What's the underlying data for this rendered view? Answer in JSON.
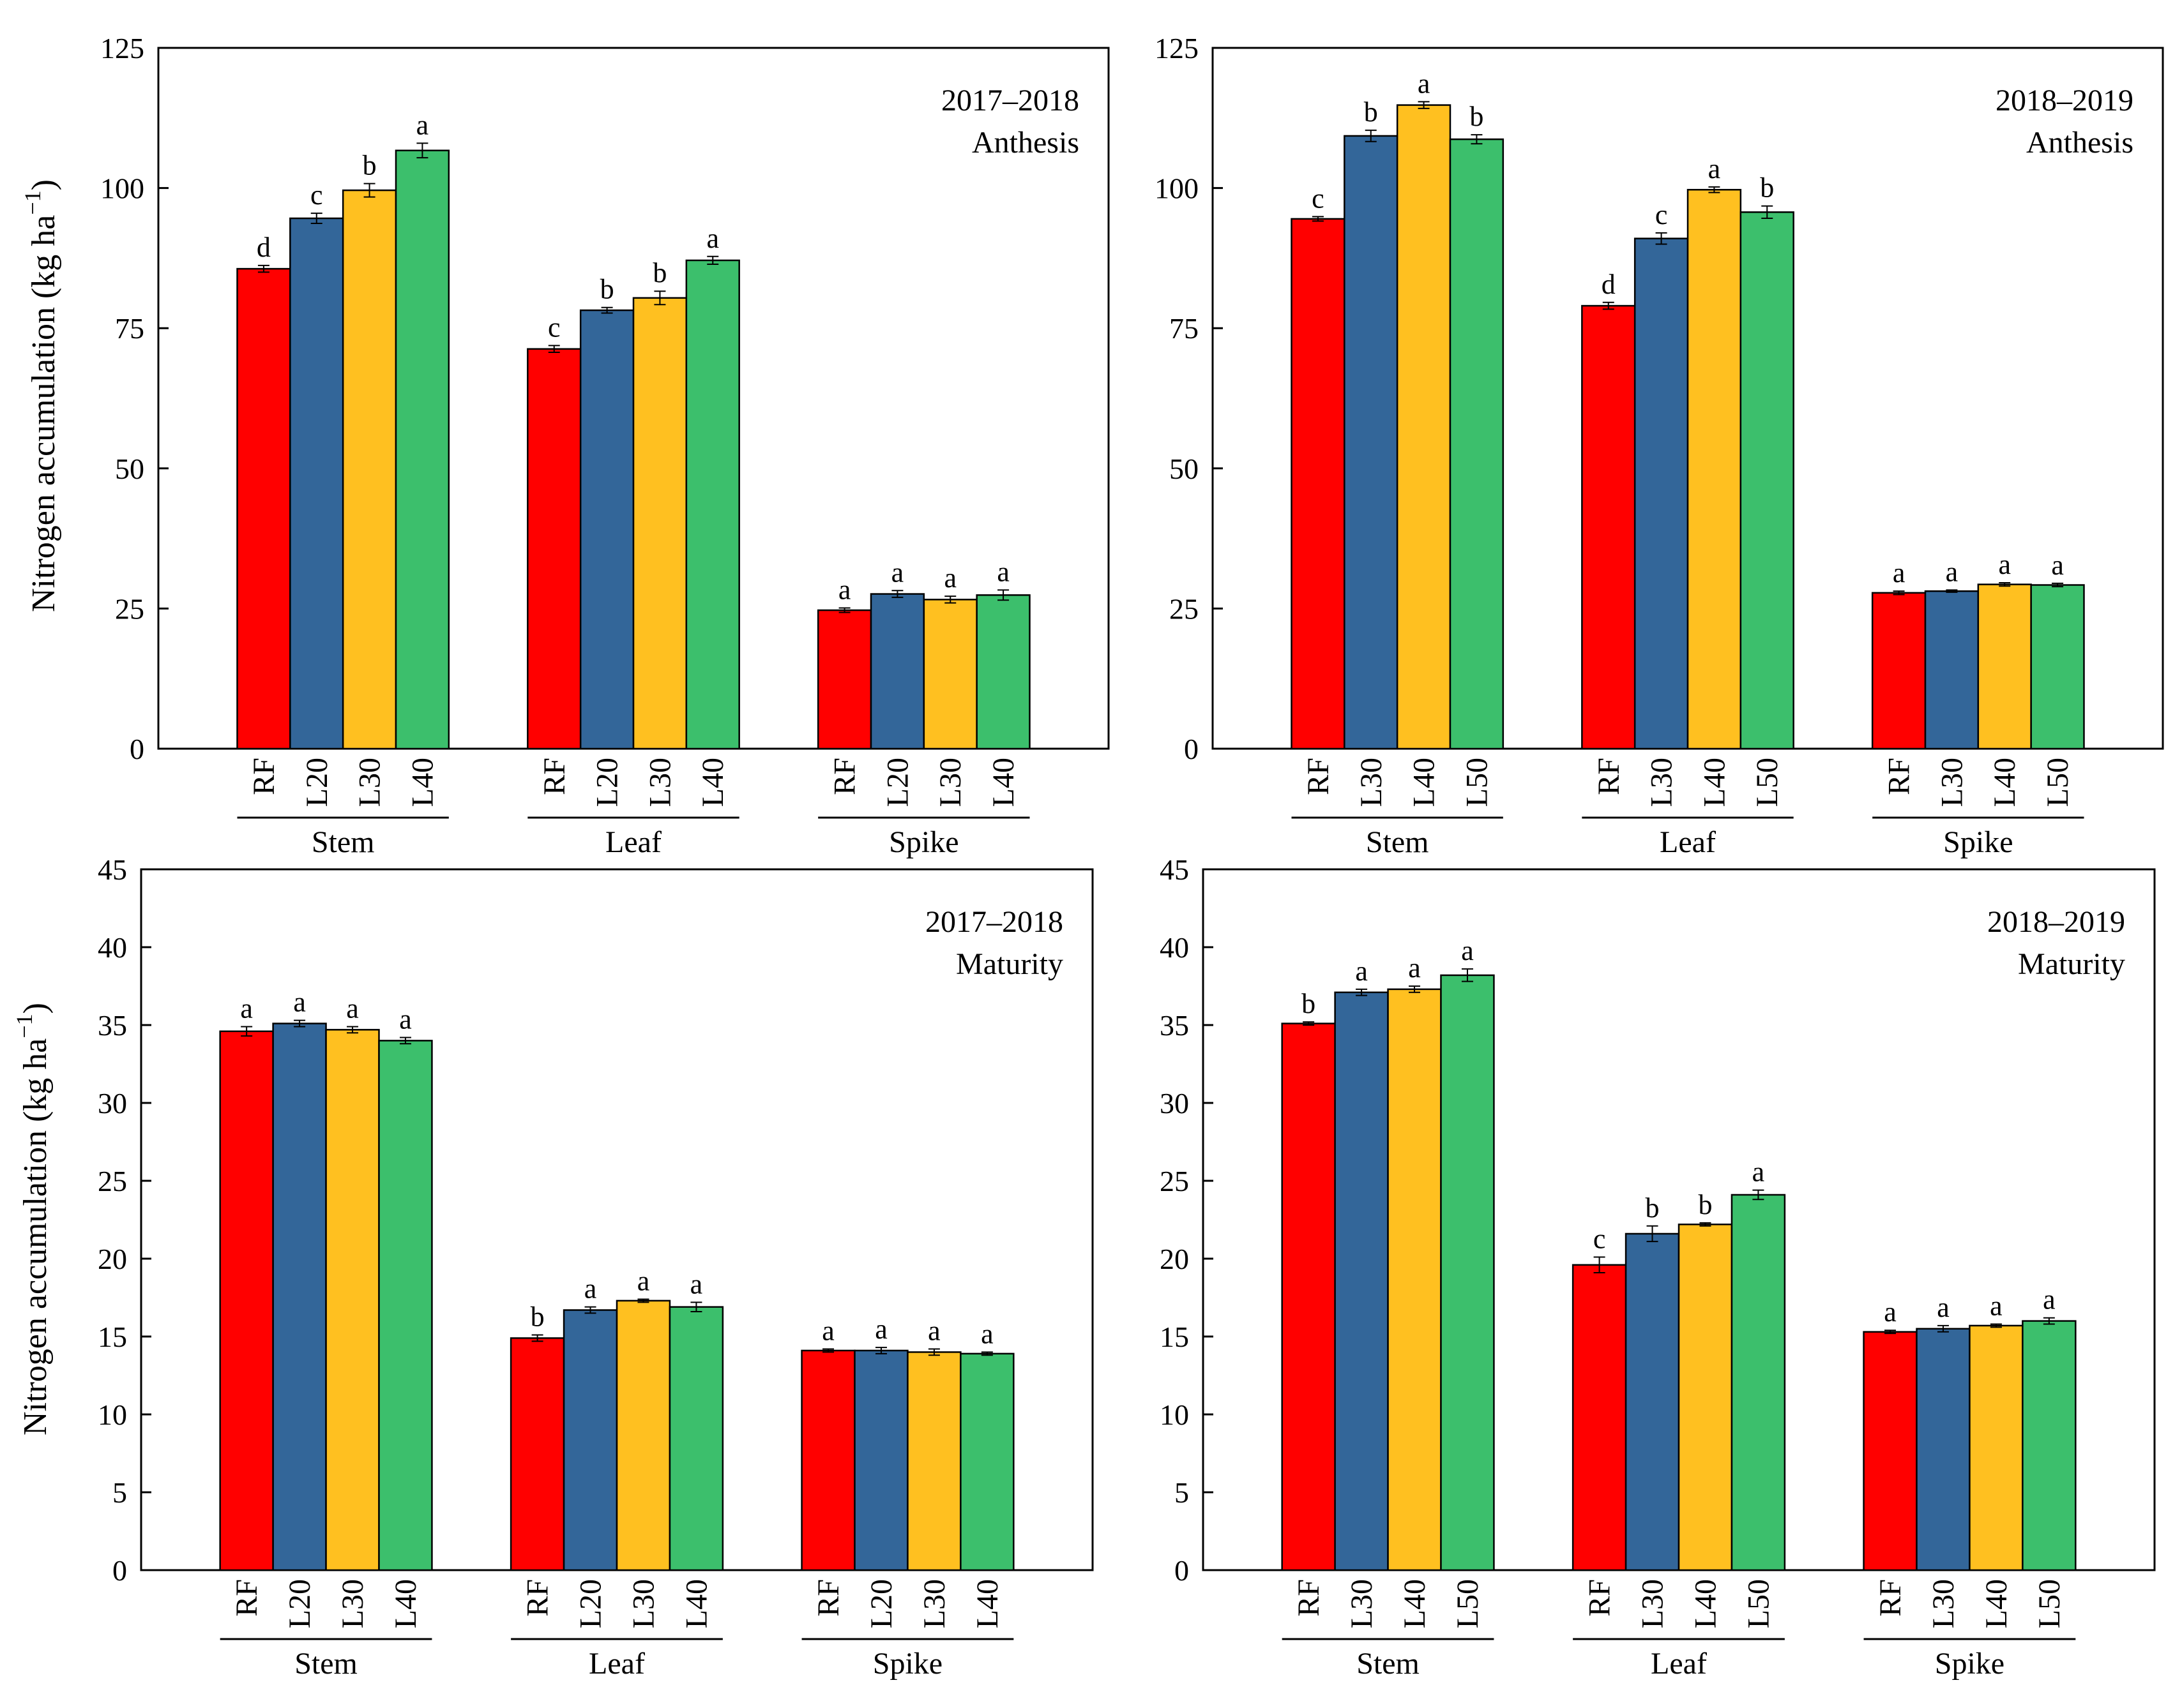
{
  "figure": {
    "ylabel_top": "Nitrogen accumulation (kg ha",
    "ylabel_bottom": "Nitrogen accumulation (kg ha",
    "ylabel_exp": "−1",
    "ylabel_close": ")"
  },
  "chart_data": [
    {
      "type": "bar",
      "id": "top-left",
      "annotation": [
        "2017–2018",
        "Anthesis"
      ],
      "ylim": [
        0,
        125
      ],
      "yticks": [
        0,
        25,
        50,
        75,
        100,
        125
      ],
      "groups": [
        "Stem",
        "Leaf",
        "Spike"
      ],
      "categories": [
        "RF",
        "L20",
        "L30",
        "L40"
      ],
      "colors": [
        "#ff0000",
        "#336699",
        "#ffc020",
        "#3cbf6c"
      ],
      "values": [
        [
          85.6,
          94.6,
          99.6,
          106.7
        ],
        [
          71.3,
          78.2,
          80.4,
          87.1
        ],
        [
          24.7,
          27.6,
          26.6,
          27.4
        ]
      ],
      "errors": [
        [
          0.6,
          0.9,
          1.2,
          1.3
        ],
        [
          0.6,
          0.5,
          1.2,
          0.7
        ],
        [
          0.4,
          0.6,
          0.6,
          0.9
        ]
      ],
      "letters": [
        [
          "d",
          "c",
          "b",
          "a"
        ],
        [
          "c",
          "b",
          "b",
          "a"
        ],
        [
          "a",
          "a",
          "a",
          "a"
        ]
      ]
    },
    {
      "type": "bar",
      "id": "top-right",
      "annotation": [
        "2018–2019",
        "Anthesis"
      ],
      "ylim": [
        0,
        125
      ],
      "yticks": [
        0,
        25,
        50,
        75,
        100,
        125
      ],
      "groups": [
        "Stem",
        "Leaf",
        "Spike"
      ],
      "categories": [
        "RF",
        "L30",
        "L40",
        "L50"
      ],
      "colors": [
        "#ff0000",
        "#336699",
        "#ffc020",
        "#3cbf6c"
      ],
      "values": [
        [
          94.5,
          109.3,
          114.8,
          108.7
        ],
        [
          79.0,
          91.0,
          99.7,
          95.7
        ],
        [
          27.8,
          28.1,
          29.3,
          29.2
        ]
      ],
      "errors": [
        [
          0.4,
          1.0,
          0.6,
          0.8
        ],
        [
          0.6,
          1.0,
          0.5,
          1.1
        ],
        [
          0.3,
          0.2,
          0.3,
          0.3
        ]
      ],
      "letters": [
        [
          "c",
          "b",
          "a",
          "b"
        ],
        [
          "d",
          "c",
          "a",
          "b"
        ],
        [
          "a",
          "a",
          "a",
          "a"
        ]
      ]
    },
    {
      "type": "bar",
      "id": "bottom-left",
      "annotation": [
        "2017–2018",
        "Maturity"
      ],
      "ylim": [
        0,
        45
      ],
      "yticks": [
        0,
        5,
        10,
        15,
        20,
        25,
        30,
        35,
        40,
        45
      ],
      "groups": [
        "Stem",
        "Leaf",
        "Spike"
      ],
      "categories": [
        "RF",
        "L20",
        "L30",
        "L40"
      ],
      "colors": [
        "#ff0000",
        "#336699",
        "#ffc020",
        "#3cbf6c"
      ],
      "values": [
        [
          34.6,
          35.1,
          34.7,
          34.0
        ],
        [
          14.9,
          16.7,
          17.3,
          16.9
        ],
        [
          14.1,
          14.1,
          14.0,
          13.9
        ]
      ],
      "errors": [
        [
          0.3,
          0.2,
          0.2,
          0.2
        ],
        [
          0.2,
          0.2,
          0.1,
          0.3
        ],
        [
          0.1,
          0.2,
          0.2,
          0.1
        ]
      ],
      "letters": [
        [
          "a",
          "a",
          "a",
          "a"
        ],
        [
          "b",
          "a",
          "a",
          "a"
        ],
        [
          "a",
          "a",
          "a",
          "a"
        ]
      ]
    },
    {
      "type": "bar",
      "id": "bottom-right",
      "annotation": [
        "2018–2019",
        "Maturity"
      ],
      "ylim": [
        0,
        45
      ],
      "yticks": [
        0,
        5,
        10,
        15,
        20,
        25,
        30,
        35,
        40,
        45
      ],
      "groups": [
        "Stem",
        "Leaf",
        "Spike"
      ],
      "categories": [
        "RF",
        "L30",
        "L40",
        "L50"
      ],
      "colors": [
        "#ff0000",
        "#336699",
        "#ffc020",
        "#3cbf6c"
      ],
      "values": [
        [
          35.1,
          37.1,
          37.3,
          38.2
        ],
        [
          19.6,
          21.6,
          22.2,
          24.1
        ],
        [
          15.3,
          15.5,
          15.7,
          16.0
        ]
      ],
      "errors": [
        [
          0.1,
          0.2,
          0.2,
          0.4
        ],
        [
          0.5,
          0.5,
          0.1,
          0.3
        ],
        [
          0.1,
          0.2,
          0.1,
          0.2
        ]
      ],
      "letters": [
        [
          "b",
          "a",
          "a",
          "a"
        ],
        [
          "c",
          "b",
          "b",
          "a"
        ],
        [
          "a",
          "a",
          "a",
          "a"
        ]
      ]
    }
  ]
}
